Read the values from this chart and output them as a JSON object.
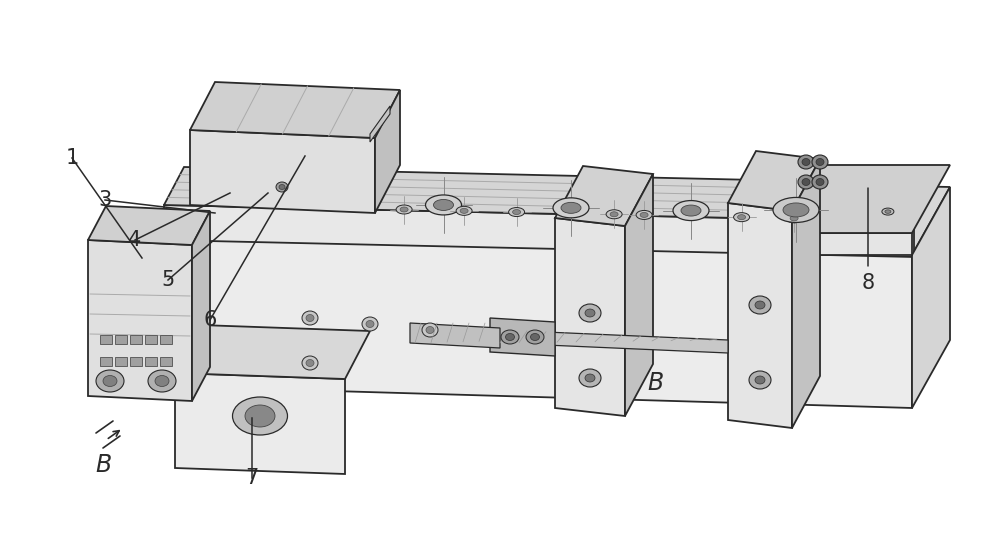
{
  "background_color": "#ffffff",
  "lc": "#2a2a2a",
  "face_top": "#e2e2e2",
  "face_front": "#efefef",
  "face_right": "#c8c8c8",
  "face_top2": "#d8d8d8",
  "face_dark": "#b5b5b5",
  "label_fontsize": 15,
  "lw_main": 1.3,
  "lw_thin": 0.7,
  "lw_detail": 0.5
}
